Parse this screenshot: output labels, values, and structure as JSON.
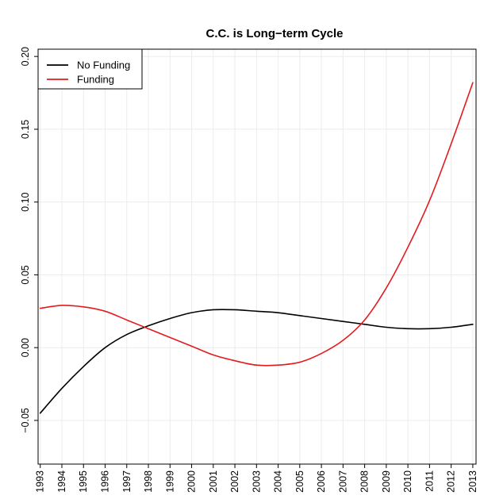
{
  "chart_data": {
    "type": "line",
    "title": "C.C. is Long−term Cycle",
    "xlabel": "",
    "ylabel": "",
    "x_ticks": [
      "1993",
      "1994",
      "1995",
      "1996",
      "1997",
      "1998",
      "1999",
      "2000",
      "2001",
      "2002",
      "2003",
      "2004",
      "2005",
      "2006",
      "2007",
      "2008",
      "2009",
      "2010",
      "2011",
      "2012",
      "2013"
    ],
    "xlim": [
      1992.9,
      2013.15
    ],
    "ylim": [
      -0.08,
      0.205
    ],
    "y_ticks": [
      "−0.05",
      "0.00",
      "0.05",
      "0.10",
      "0.15",
      "0.20"
    ],
    "y_tick_values": [
      -0.05,
      0.0,
      0.05,
      0.1,
      0.15,
      0.2
    ],
    "grid": true,
    "legend": {
      "position": "top-left",
      "entries": [
        "No Funding",
        "Funding"
      ]
    },
    "series": [
      {
        "name": "No Funding",
        "color": "#000000",
        "x": [
          1993,
          1994,
          1995,
          1996,
          1997,
          1998,
          1999,
          2000,
          2001,
          2002,
          2003,
          2004,
          2005,
          2006,
          2007,
          2008,
          2009,
          2010,
          2011,
          2012,
          2013
        ],
        "y": [
          -0.045,
          -0.028,
          -0.013,
          0.0,
          0.009,
          0.015,
          0.02,
          0.024,
          0.026,
          0.026,
          0.025,
          0.024,
          0.022,
          0.02,
          0.018,
          0.016,
          0.014,
          0.013,
          0.013,
          0.014,
          0.016
        ]
      },
      {
        "name": "Funding",
        "color": "#e41a1c",
        "x": [
          1993,
          1994,
          1995,
          1996,
          1997,
          1998,
          1999,
          2000,
          2001,
          2002,
          2003,
          2004,
          2005,
          2006,
          2007,
          2008,
          2009,
          2010,
          2011,
          2012,
          2013
        ],
        "y": [
          0.027,
          0.029,
          0.028,
          0.025,
          0.019,
          0.013,
          0.007,
          0.001,
          -0.005,
          -0.009,
          -0.012,
          -0.012,
          -0.01,
          -0.004,
          0.005,
          0.019,
          0.041,
          0.069,
          0.101,
          0.14,
          0.182
        ]
      }
    ]
  }
}
